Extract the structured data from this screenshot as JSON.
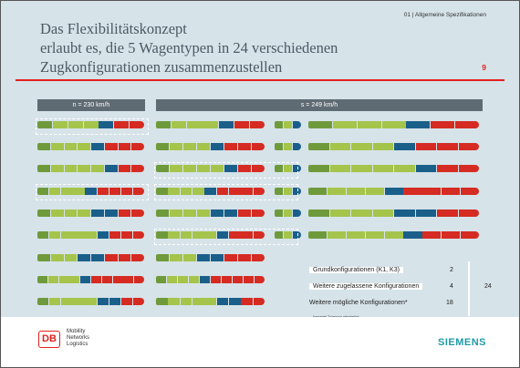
{
  "header": {
    "section": "01 | Allgemeine Spezifikationen"
  },
  "title": {
    "lines": [
      "Das Flexibilitätskonzept",
      "erlaubt es, die 5 Wagentypen in 24 verschiedenen",
      "Zugkonfigurationen zusammenzustellen"
    ]
  },
  "page_number": "9",
  "columns": {
    "left_header": "n = 230 km/h",
    "right_header": "s = 249 km/h"
  },
  "colors": {
    "power_car_green": "#6f9a3b",
    "light_green": "#a5c44b",
    "dark_green": "#4d7a2a",
    "blue": "#1a5f8a",
    "red": "#d52b22",
    "accent_red": "#e3211c",
    "siemens_teal": "#1f9aa8"
  },
  "summary": {
    "rows": [
      {
        "label": "Grundkonfigurationen (K1, K3)",
        "value": "2"
      },
      {
        "label": "Weitere zugelassene Konfigurationen",
        "value": "4"
      },
      {
        "label": "Weitere mögliche Konfigurationen*",
        "value": "18"
      }
    ],
    "total": "24",
    "footnote": "*separate Zulassung erforderlich"
  },
  "footer": {
    "db_logo": "DB",
    "db_lines": [
      "Mobility",
      "Networks",
      "Logistics"
    ],
    "siemens": "SIEMENS"
  }
}
